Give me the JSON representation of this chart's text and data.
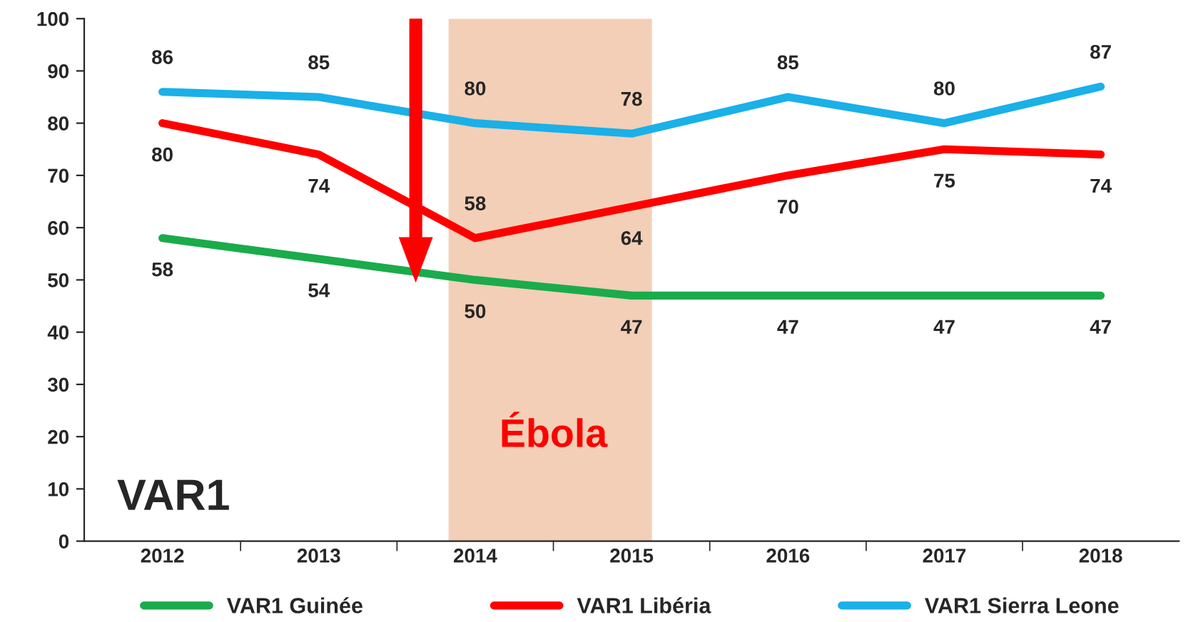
{
  "chart_data": {
    "type": "line",
    "categories": [
      "2012",
      "2013",
      "2014",
      "2015",
      "2016",
      "2017",
      "2018"
    ],
    "series": [
      {
        "name": "VAR1 Guinée",
        "color": "#1aab4b",
        "values": [
          58,
          54,
          50,
          47,
          47,
          47,
          47
        ]
      },
      {
        "name": "VAR1 Libéria",
        "color": "#ff0000",
        "values": [
          80,
          74,
          58,
          64,
          70,
          75,
          74
        ]
      },
      {
        "name": "VAR1 Sierra Leone",
        "color": "#1ab0e8",
        "values": [
          86,
          85,
          80,
          78,
          85,
          80,
          87
        ]
      }
    ],
    "ylim": [
      0,
      100
    ],
    "yticks": [
      0,
      10,
      20,
      30,
      40,
      50,
      60,
      70,
      80,
      90,
      100
    ],
    "bands": [
      {
        "axis": "x",
        "from": "2014",
        "to": "2015",
        "label": "Ébola",
        "color": "#f2cfb6"
      }
    ],
    "annotations": [
      "VAR1"
    ],
    "data_labels": true,
    "legend": "bottom",
    "grid": false,
    "marker": "none",
    "line_style": "solid"
  }
}
